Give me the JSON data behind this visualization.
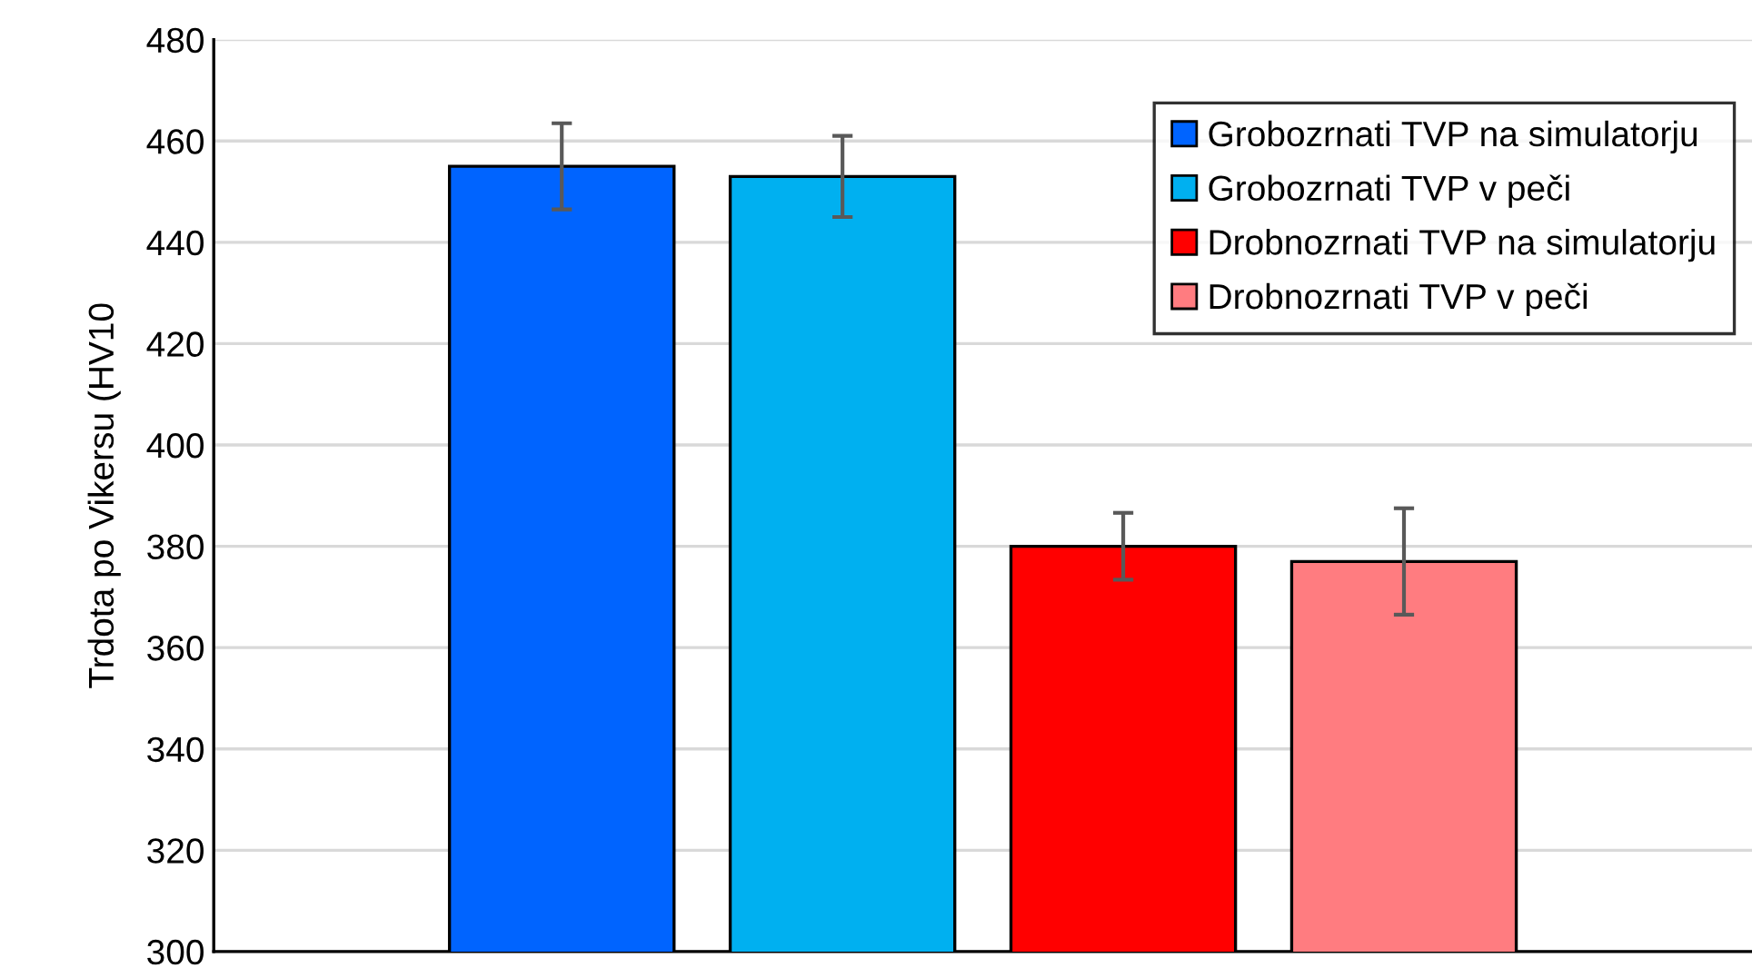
{
  "chart_data": {
    "type": "bar",
    "ylabel": "Trdota po Vikersu (HV10",
    "categories": [
      null
    ],
    "series": [
      {
        "name": "Grobozrnati TVP na simulatorju",
        "color": "#0064ff",
        "values": [
          455
        ],
        "errors": [
          8.5
        ]
      },
      {
        "name": "Grobozrnati TVP v peči",
        "color": "#00b0f0",
        "values": [
          453
        ],
        "errors": [
          8
        ]
      },
      {
        "name": "Drobnozrnati TVP na simulatorju",
        "color": "#ff0000",
        "values": [
          380
        ],
        "errors": [
          6.6
        ]
      },
      {
        "name": "Drobnozrnati TVP v peči",
        "color": "#ff7c80",
        "values": [
          377
        ],
        "errors": [
          10.5
        ]
      }
    ],
    "ylim": [
      300,
      480
    ],
    "yticks": [
      300,
      320,
      340,
      360,
      380,
      400,
      420,
      440,
      460,
      480
    ],
    "grid": "y",
    "legend": "top right"
  }
}
